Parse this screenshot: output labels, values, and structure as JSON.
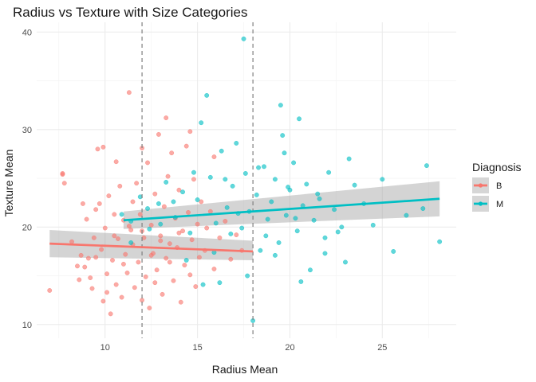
{
  "chart_data": {
    "type": "scatter",
    "title": "Radius vs Texture with Size Categories",
    "xlabel": "Radius Mean",
    "ylabel": "Texture Mean",
    "xlim": [
      6.3,
      29.0
    ],
    "ylim": [
      8.6,
      41.0
    ],
    "x_ticks": [
      10,
      15,
      20,
      25
    ],
    "y_ticks": [
      10,
      20,
      30,
      40
    ],
    "grid": true,
    "vlines": [
      12,
      18
    ],
    "legend": {
      "title": "Diagnosis",
      "placement": "right",
      "entries": [
        {
          "label": "B",
          "color": "#F8766D"
        },
        {
          "label": "M",
          "color": "#00BFC4"
        }
      ]
    },
    "trend_lines": [
      {
        "name": "B",
        "color": "#F8766D",
        "x": [
          7.0,
          18.0
        ],
        "y": [
          18.3,
          17.5
        ],
        "band": [
          [
            16.9,
            19.7
          ],
          [
            16.6,
            18.6
          ]
        ]
      },
      {
        "name": "M",
        "color": "#00BFC4",
        "x": [
          11.0,
          28.1
        ],
        "y": [
          20.7,
          22.9
        ],
        "band": [
          [
            19.8,
            21.6
          ],
          [
            21.1,
            24.7
          ]
        ]
      }
    ],
    "series": [
      {
        "name": "B",
        "color": "#F8766D",
        "points": [
          [
            7.0,
            13.5
          ],
          [
            7.7,
            25.4
          ],
          [
            7.8,
            24.5
          ],
          [
            7.7,
            25.5
          ],
          [
            8.2,
            18.5
          ],
          [
            8.5,
            16.0
          ],
          [
            8.6,
            14.6
          ],
          [
            8.7,
            17.1
          ],
          [
            8.9,
            15.9
          ],
          [
            9.0,
            20.8
          ],
          [
            9.1,
            16.8
          ],
          [
            9.2,
            14.8
          ],
          [
            9.3,
            13.7
          ],
          [
            9.4,
            18.9
          ],
          [
            9.5,
            21.8
          ],
          [
            9.6,
            28.0
          ],
          [
            9.7,
            22.4
          ],
          [
            9.8,
            17.7
          ],
          [
            9.9,
            12.4
          ],
          [
            9.9,
            28.2
          ],
          [
            10.0,
            19.9
          ],
          [
            10.1,
            15.2
          ],
          [
            10.2,
            23.2
          ],
          [
            10.3,
            11.1
          ],
          [
            10.4,
            16.6
          ],
          [
            10.5,
            21.3
          ],
          [
            10.6,
            14.1
          ],
          [
            10.6,
            26.7
          ],
          [
            10.7,
            18.8
          ],
          [
            10.8,
            24.2
          ],
          [
            10.9,
            12.8
          ],
          [
            11.0,
            20.7
          ],
          [
            11.1,
            17.2
          ],
          [
            11.2,
            15.3
          ],
          [
            11.3,
            33.8
          ],
          [
            11.4,
            19.7
          ],
          [
            11.5,
            22.6
          ],
          [
            11.6,
            13.8
          ],
          [
            11.7,
            24.5
          ],
          [
            11.8,
            16.4
          ],
          [
            11.9,
            21.3
          ],
          [
            12.0,
            28.1
          ],
          [
            12.1,
            18.9
          ],
          [
            12.2,
            14.9
          ],
          [
            12.3,
            26.6
          ],
          [
            12.4,
            11.7
          ],
          [
            12.5,
            20.2
          ],
          [
            12.6,
            17.3
          ],
          [
            12.7,
            23.4
          ],
          [
            12.8,
            15.6
          ],
          [
            12.9,
            29.5
          ],
          [
            13.0,
            19.1
          ],
          [
            13.1,
            13.1
          ],
          [
            13.2,
            22.1
          ],
          [
            13.3,
            16.8
          ],
          [
            13.4,
            25.2
          ],
          [
            13.5,
            18.3
          ],
          [
            13.6,
            27.6
          ],
          [
            13.7,
            14.5
          ],
          [
            13.8,
            20.9
          ],
          [
            13.9,
            17.9
          ],
          [
            14.0,
            23.8
          ],
          [
            14.1,
            12.3
          ],
          [
            14.2,
            19.6
          ],
          [
            14.3,
            16.1
          ],
          [
            14.4,
            28.3
          ],
          [
            14.5,
            21.5
          ],
          [
            14.6,
            15.1
          ],
          [
            14.7,
            18.7
          ],
          [
            14.8,
            24.9
          ],
          [
            14.9,
            13.9
          ],
          [
            15.0,
            20.3
          ],
          [
            15.1,
            16.9
          ],
          [
            15.2,
            22.6
          ],
          [
            15.4,
            17.6
          ],
          [
            15.5,
            19.9
          ],
          [
            15.7,
            21.6
          ],
          [
            15.9,
            15.7
          ],
          [
            16.2,
            18.9
          ],
          [
            16.5,
            20.6
          ],
          [
            16.8,
            16.7
          ],
          [
            17.1,
            19.2
          ],
          [
            17.4,
            17.6
          ],
          [
            10.5,
            19.1
          ],
          [
            11.0,
            16.2
          ],
          [
            11.5,
            18.2
          ],
          [
            12.0,
            19.6
          ],
          [
            12.5,
            17.1
          ],
          [
            13.0,
            18.6
          ],
          [
            13.5,
            16.4
          ],
          [
            14.0,
            19.4
          ],
          [
            11.3,
            20.1
          ],
          [
            12.7,
            14.3
          ],
          [
            10.1,
            13.3
          ],
          [
            8.8,
            22.4
          ],
          [
            13.3,
            31.2
          ],
          [
            14.6,
            29.8
          ],
          [
            15.9,
            27.2
          ],
          [
            9.5,
            16.9
          ],
          [
            12.0,
            12.5
          ]
        ]
      },
      {
        "name": "M",
        "color": "#00BFC4",
        "points": [
          [
            10.9,
            21.3
          ],
          [
            11.4,
            20.6
          ],
          [
            11.9,
            23.1
          ],
          [
            12.4,
            19.8
          ],
          [
            12.9,
            22.4
          ],
          [
            13.3,
            24.6
          ],
          [
            13.8,
            21.0
          ],
          [
            14.2,
            23.6
          ],
          [
            14.6,
            19.4
          ],
          [
            15.0,
            22.8
          ],
          [
            15.2,
            30.7
          ],
          [
            15.5,
            33.5
          ],
          [
            15.7,
            25.1
          ],
          [
            16.0,
            20.4
          ],
          [
            16.3,
            27.8
          ],
          [
            16.6,
            22.0
          ],
          [
            16.9,
            24.2
          ],
          [
            17.1,
            28.6
          ],
          [
            17.4,
            19.9
          ],
          [
            17.5,
            39.3
          ],
          [
            17.6,
            25.5
          ],
          [
            17.8,
            21.6
          ],
          [
            18.0,
            10.4
          ],
          [
            18.2,
            23.3
          ],
          [
            18.4,
            17.6
          ],
          [
            18.6,
            26.2
          ],
          [
            18.8,
            20.8
          ],
          [
            19.0,
            22.6
          ],
          [
            19.2,
            24.9
          ],
          [
            19.4,
            18.4
          ],
          [
            19.5,
            32.5
          ],
          [
            19.6,
            29.4
          ],
          [
            19.8,
            21.2
          ],
          [
            20.0,
            23.8
          ],
          [
            20.2,
            26.6
          ],
          [
            20.4,
            19.6
          ],
          [
            20.5,
            31.1
          ],
          [
            20.7,
            22.2
          ],
          [
            20.9,
            24.4
          ],
          [
            21.1,
            15.6
          ],
          [
            21.3,
            20.7
          ],
          [
            21.6,
            22.9
          ],
          [
            21.9,
            18.9
          ],
          [
            22.1,
            25.6
          ],
          [
            22.4,
            21.8
          ],
          [
            22.8,
            20.0
          ],
          [
            23.0,
            16.4
          ],
          [
            23.2,
            27.0
          ],
          [
            23.5,
            24.3
          ],
          [
            24.0,
            22.4
          ],
          [
            24.5,
            20.2
          ],
          [
            25.0,
            24.9
          ],
          [
            25.6,
            17.5
          ],
          [
            26.3,
            21.2
          ],
          [
            27.2,
            21.9
          ],
          [
            27.4,
            26.3
          ],
          [
            28.1,
            18.5
          ],
          [
            16.2,
            14.3
          ],
          [
            14.4,
            16.6
          ],
          [
            15.3,
            14.1
          ],
          [
            19.2,
            17.1
          ],
          [
            20.6,
            14.4
          ],
          [
            21.9,
            17.3
          ],
          [
            17.7,
            15.0
          ],
          [
            13.7,
            22.6
          ],
          [
            14.8,
            25.6
          ],
          [
            16.5,
            24.9
          ],
          [
            18.3,
            26.1
          ],
          [
            19.7,
            27.6
          ],
          [
            17.2,
            21.4
          ],
          [
            15.9,
            17.4
          ],
          [
            13.0,
            20.3
          ],
          [
            12.3,
            21.9
          ],
          [
            11.4,
            18.4
          ],
          [
            16.8,
            19.3
          ],
          [
            18.7,
            19.1
          ],
          [
            20.3,
            20.9
          ],
          [
            21.5,
            23.4
          ],
          [
            22.6,
            19.5
          ],
          [
            19.9,
            24.1
          ]
        ]
      }
    ]
  }
}
